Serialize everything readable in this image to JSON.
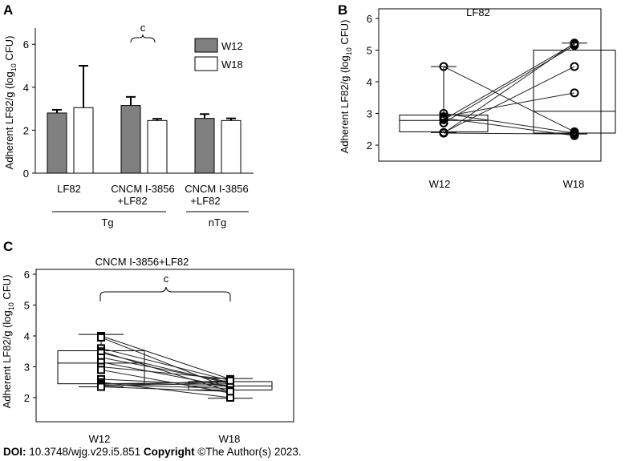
{
  "chart_data": [
    {
      "type": "bar",
      "panel": "A",
      "ylabel": "Adherent LF82/g (log10 CFU)",
      "ylim": [
        0,
        6.5
      ],
      "yticks": [
        0,
        2,
        4,
        6
      ],
      "categories": [
        "LF82",
        "CNCM I-3856\n+LF82",
        "CNCM I-3856\n+LF82"
      ],
      "groups": [
        {
          "name": "Tg",
          "spans": [
            0,
            1
          ]
        },
        {
          "name": "nTg",
          "spans": [
            2,
            2
          ]
        }
      ],
      "series": [
        {
          "name": "W12",
          "color": "#808080",
          "values": [
            2.8,
            3.15,
            2.55
          ],
          "errors": [
            0.15,
            0.4,
            0.2
          ]
        },
        {
          "name": "W18",
          "color": "#ffffff",
          "values": [
            3.05,
            2.45,
            2.45
          ],
          "errors": [
            1.95,
            0.08,
            0.1
          ]
        }
      ],
      "annotations": [
        {
          "text": "c",
          "between": "CNCM I-3856+LF82 (Tg) W12 vs W18"
        }
      ],
      "legend": "top-right"
    },
    {
      "type": "box",
      "panel": "B",
      "title": "LF82",
      "ylabel": "Adherent LF82/g (log10 CFU)",
      "ylim": [
        1.5,
        6.2
      ],
      "yticks": [
        2,
        3,
        4,
        5,
        6
      ],
      "categories": [
        "W12",
        "W18"
      ],
      "boxes": [
        {
          "q1": 2.42,
          "median": 2.78,
          "q3": 2.95,
          "whisker_low": 2.4,
          "whisker_high": 4.48
        },
        {
          "q1": 2.38,
          "median": 3.07,
          "q3": 5.0,
          "whisker_low": 2.35,
          "whisker_high": 5.22
        }
      ],
      "paired": [
        [
          4.48,
          2.42
        ],
        [
          3.0,
          2.38
        ],
        [
          2.9,
          3.65
        ],
        [
          2.85,
          2.3
        ],
        [
          2.8,
          5.2
        ],
        [
          2.7,
          5.15
        ],
        [
          2.4,
          4.48
        ],
        [
          2.38,
          5.22
        ],
        [
          2.38,
          2.35
        ]
      ]
    },
    {
      "type": "box",
      "panel": "C",
      "title": "CNCM I-3856+LF82",
      "ylabel": "Adherent LF82/g (log10 CFU)",
      "ylim": [
        1.5,
        6.2
      ],
      "yticks": [
        2,
        3,
        4,
        5,
        6
      ],
      "categories": [
        "W12",
        "W18"
      ],
      "boxes": [
        {
          "q1": 2.45,
          "median": 3.12,
          "q3": 3.52,
          "whisker_low": 2.35,
          "whisker_high": 4.05
        },
        {
          "q1": 2.25,
          "median": 2.38,
          "q3": 2.52,
          "whisker_low": 1.98,
          "whisker_high": 2.62
        }
      ],
      "paired": [
        [
          4.0,
          2.6
        ],
        [
          3.95,
          2.3
        ],
        [
          3.6,
          2.55
        ],
        [
          3.5,
          2.2
        ],
        [
          3.45,
          2.45
        ],
        [
          3.3,
          2.5
        ],
        [
          3.15,
          2.35
        ],
        [
          3.0,
          2.6
        ],
        [
          2.9,
          2.15
        ],
        [
          2.6,
          2.4
        ],
        [
          2.5,
          2.0
        ],
        [
          2.45,
          2.5
        ],
        [
          2.42,
          2.3
        ],
        [
          2.4,
          2.45
        ],
        [
          2.38,
          2.55
        ],
        [
          2.35,
          2.2
        ]
      ],
      "annotations": [
        {
          "text": "c",
          "between": "W12 vs W18"
        }
      ]
    }
  ],
  "labels": {
    "panel_a": "A",
    "panel_b": "B",
    "panel_c": "C",
    "a_ylabel_main": "Adherent LF82/g (log",
    "a_ylabel_sub": "10",
    "a_ylabel_end": " CFU)",
    "a_cat1": "LF82",
    "a_cat2_line1": "CNCM I-3856",
    "a_cat2_line2": "+LF82",
    "a_cat3_line1": "CNCM I-3856",
    "a_cat3_line2": "+LF82",
    "a_group_tg": "Tg",
    "a_group_ntg": "nTg",
    "a_legend_w12": "W12",
    "a_legend_w18": "W18",
    "a_sig": "c",
    "b_title": "LF82",
    "b_x1": "W12",
    "b_x2": "W18",
    "c_title": "CNCM I-3856+LF82",
    "c_x1": "W12",
    "c_x2": "W18",
    "c_sig": "c"
  },
  "footer": {
    "doi_label": "DOI:",
    "doi_value": " 10.3748/wjg.v29.i5.851  ",
    "copyright_label": "Copyright",
    "copyright_value": " ©The Author(s) 2023."
  }
}
